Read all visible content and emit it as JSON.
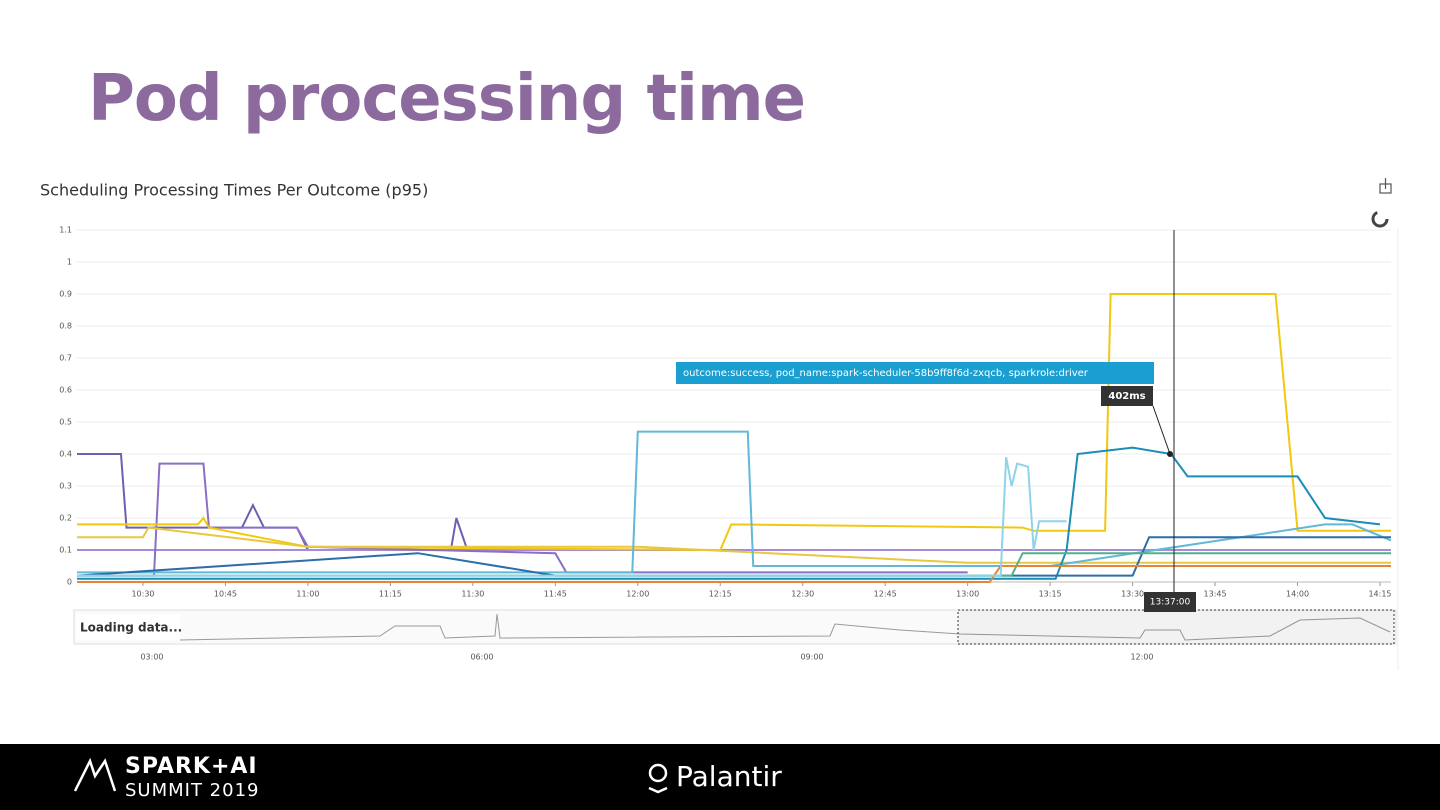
{
  "slide": {
    "title": "Pod processing time"
  },
  "chart_data": {
    "type": "line",
    "title": "Scheduling Processing Times Per Outcome (p95)",
    "xlim": [
      "10:18",
      "14:17"
    ],
    "xticks": [
      "10:30",
      "10:45",
      "11:00",
      "11:15",
      "11:30",
      "11:45",
      "12:00",
      "12:15",
      "12:30",
      "12:45",
      "13:00",
      "13:15",
      "13:30",
      "13:45",
      "14:00",
      "14:15"
    ],
    "ylim": [
      0,
      1.1
    ],
    "yticks": [
      0,
      0.1,
      0.2,
      0.3,
      0.4,
      0.5,
      0.6,
      0.7,
      0.8,
      0.9,
      1,
      1.1
    ],
    "grid": true,
    "series": [
      {
        "color": "#6f5fb0",
        "x": [
          "10:18",
          "10:26",
          "10:27",
          "10:47",
          "10:48",
          "10:50",
          "10:52",
          "10:58",
          "11:00",
          "11:26",
          "11:27",
          "11:29",
          "11:45",
          "12:30",
          "13:15"
        ],
        "values": [
          0.4,
          0.4,
          0.17,
          0.17,
          0.17,
          0.24,
          0.17,
          0.17,
          0.1,
          0.1,
          0.2,
          0.1,
          0.1,
          0.1,
          0.1
        ]
      },
      {
        "color": "#a98ad8",
        "x": [
          "10:18",
          "14:17"
        ],
        "values": [
          0.1,
          0.1
        ]
      },
      {
        "color": "#8a6fc4",
        "x": [
          "10:18",
          "10:32",
          "10:33",
          "10:41",
          "10:42",
          "10:58",
          "11:00",
          "11:45",
          "11:47",
          "13:00"
        ],
        "values": [
          0.02,
          0.02,
          0.37,
          0.37,
          0.17,
          0.17,
          0.11,
          0.09,
          0.03,
          0.03
        ]
      },
      {
        "color": "#f2c80f",
        "x": [
          "10:18",
          "10:40",
          "10:41",
          "10:42",
          "11:00",
          "12:15",
          "12:17",
          "13:10",
          "13:12",
          "13:25",
          "13:26",
          "13:56",
          "14:00",
          "14:17"
        ],
        "values": [
          0.18,
          0.18,
          0.2,
          0.17,
          0.11,
          0.1,
          0.18,
          0.17,
          0.16,
          0.16,
          0.9,
          0.9,
          0.16,
          0.16
        ]
      },
      {
        "color": "#e8c840",
        "x": [
          "10:18",
          "10:30",
          "10:31",
          "11:00",
          "12:00",
          "13:00",
          "14:17"
        ],
        "values": [
          0.14,
          0.14,
          0.17,
          0.11,
          0.11,
          0.06,
          0.06
        ]
      },
      {
        "color": "#62b8d6",
        "x": [
          "10:18",
          "11:59",
          "12:00",
          "12:20",
          "12:21",
          "13:15",
          "14:05",
          "14:10",
          "14:17"
        ],
        "values": [
          0.03,
          0.03,
          0.47,
          0.47,
          0.05,
          0.05,
          0.18,
          0.18,
          0.13
        ]
      },
      {
        "color": "#1c8db4",
        "x": [
          "10:18",
          "13:16",
          "13:18",
          "13:20",
          "13:30",
          "13:37",
          "13:40",
          "14:00",
          "14:05",
          "14:15"
        ],
        "values": [
          0.01,
          0.01,
          0.1,
          0.4,
          0.42,
          0.4,
          0.33,
          0.33,
          0.2,
          0.18
        ]
      },
      {
        "color": "#2a6fa8",
        "x": [
          "10:18",
          "11:20",
          "11:45",
          "13:30",
          "13:33",
          "14:17"
        ],
        "values": [
          0.02,
          0.09,
          0.02,
          0.02,
          0.14,
          0.14
        ]
      },
      {
        "color": "#4fb28a",
        "x": [
          "10:18",
          "13:08",
          "13:10",
          "14:17"
        ],
        "values": [
          0.02,
          0.02,
          0.09,
          0.09
        ]
      },
      {
        "color": "#e8833a",
        "x": [
          "10:18",
          "13:04",
          "13:06",
          "14:17"
        ],
        "values": [
          0.0,
          0.0,
          0.05,
          0.05
        ]
      },
      {
        "color": "#8fd3ea",
        "x": [
          "10:18",
          "13:06",
          "13:07",
          "13:08",
          "13:09",
          "13:11",
          "13:12",
          "13:13",
          "13:18"
        ],
        "values": [
          0.02,
          0.02,
          0.39,
          0.3,
          0.37,
          0.36,
          0.1,
          0.19,
          0.19
        ]
      }
    ],
    "tooltip": {
      "tags": "outcome:success, pod_name:spark-scheduler-58b9ff8f6d-zxqcb, sparkrole:driver",
      "value": "402ms",
      "time": "13:37:00"
    },
    "navigator": {
      "status": "Loading data...",
      "ticks": [
        "03:00",
        "06:00",
        "09:00",
        "12:00"
      ]
    }
  },
  "footer": {
    "event_line1": "SPARK+AI",
    "event_line2": "SUMMIT 2019",
    "sponsor": "Palantir"
  }
}
